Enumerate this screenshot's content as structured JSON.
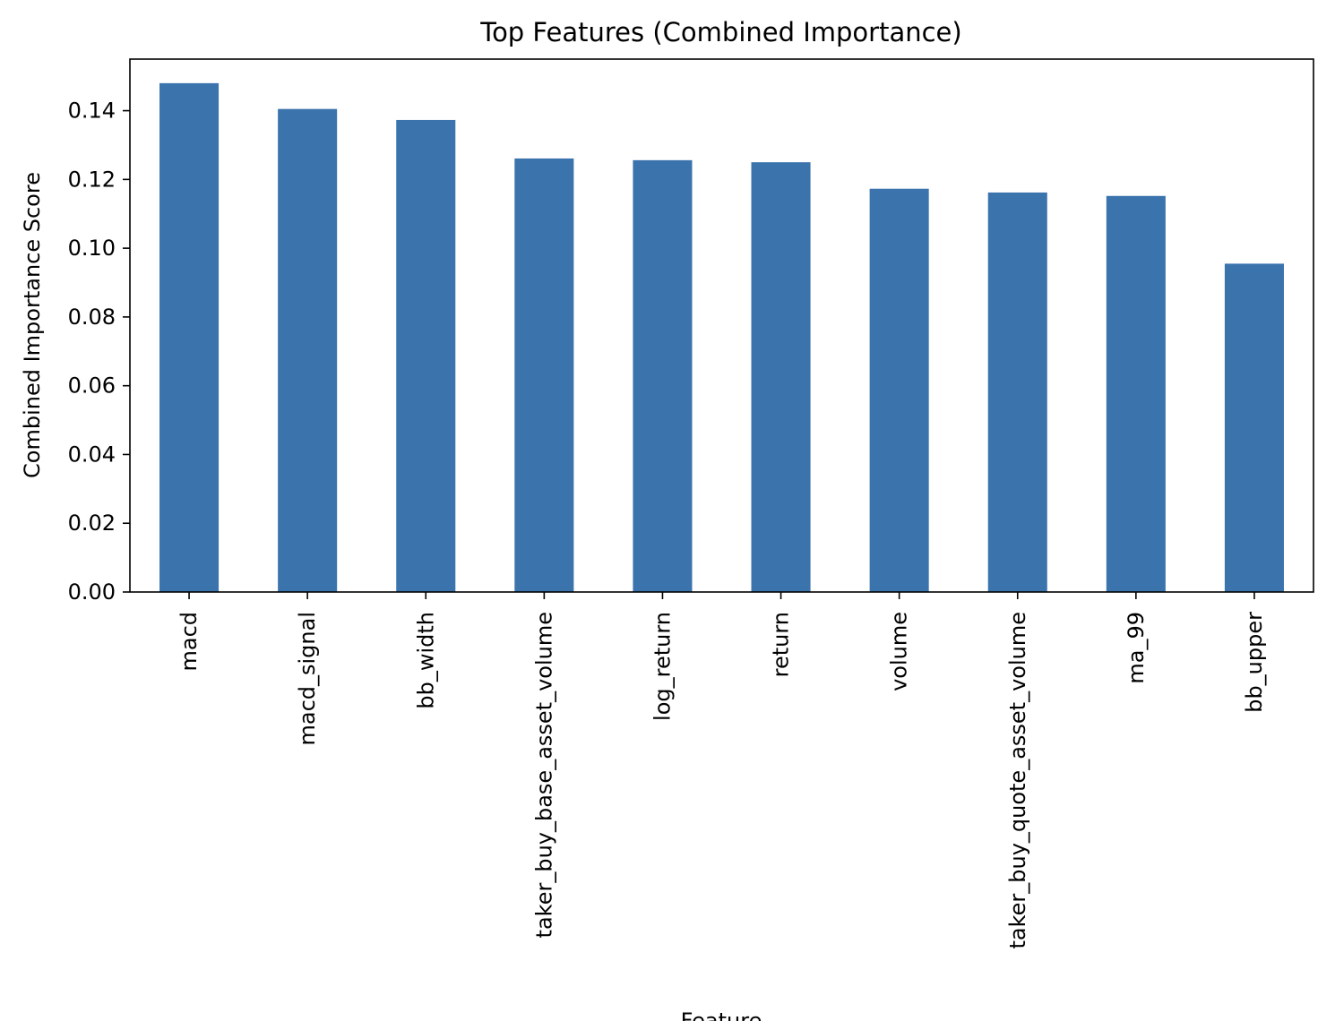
{
  "chart_data": {
    "type": "bar",
    "title": "Top Features (Combined Importance)",
    "xlabel": "Feature",
    "ylabel": "Combined Importance Score",
    "categories": [
      "macd",
      "macd_signal",
      "bb_width",
      "taker_buy_base_asset_volume",
      "log_return",
      "return",
      "volume",
      "taker_buy_quote_asset_volume",
      "ma_99",
      "bb_upper"
    ],
    "values": [
      0.148,
      0.1405,
      0.1373,
      0.1261,
      0.1256,
      0.125,
      0.1173,
      0.1162,
      0.1152,
      0.0955
    ],
    "ylim": [
      0,
      0.155
    ],
    "yticks": [
      0.0,
      0.02,
      0.04,
      0.06,
      0.08,
      0.1,
      0.12,
      0.14
    ],
    "ytick_labels": [
      "0.00",
      "0.02",
      "0.04",
      "0.06",
      "0.08",
      "0.10",
      "0.12",
      "0.14"
    ],
    "bar_color": "#3b73ad",
    "grid": false,
    "legend": "none"
  }
}
